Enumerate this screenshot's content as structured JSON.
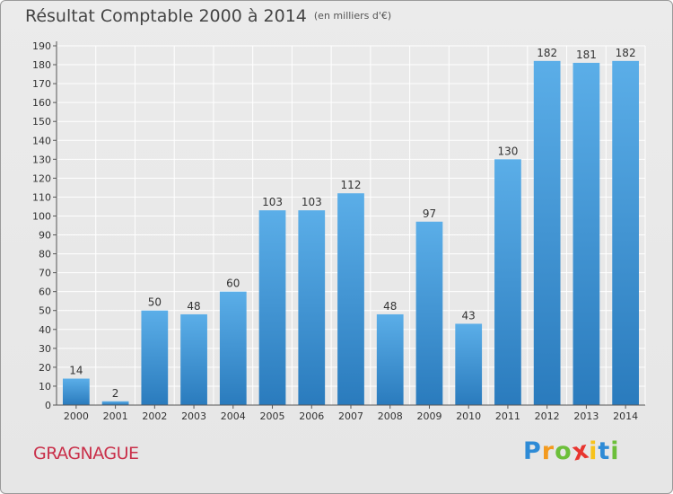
{
  "header": {
    "title": "Résultat Comptable 2000 à 2014",
    "subtitle": "(en milliers d'€)"
  },
  "footer": {
    "location": "GRAGNAGUE",
    "logo_letters": [
      "P",
      "r",
      "o",
      "x",
      "i",
      "t",
      "i"
    ],
    "logo_colors": [
      "#2e8bd6",
      "#f39a1e",
      "#6cbf3a",
      "#e8352f",
      "#f7c21b",
      "#2e8bd6",
      "#6cbf3a"
    ]
  },
  "colors": {
    "bar_top": "#5baee8",
    "bar_bottom": "#2a7bbd",
    "grid": "#ffffff",
    "axis_text": "#333333"
  },
  "chart_data": {
    "type": "bar",
    "title": "Résultat Comptable 2000 à 2014",
    "subtitle": "(en milliers d'€)",
    "xlabel": "",
    "ylabel": "",
    "ylim": [
      0,
      190
    ],
    "ytick_step": 10,
    "grid": true,
    "categories": [
      "2000",
      "2001",
      "2002",
      "2003",
      "2004",
      "2005",
      "2006",
      "2007",
      "2008",
      "2009",
      "2010",
      "2011",
      "2012",
      "2013",
      "2014"
    ],
    "values": [
      14,
      2,
      50,
      48,
      60,
      103,
      103,
      112,
      48,
      97,
      43,
      130,
      182,
      181,
      182
    ]
  }
}
